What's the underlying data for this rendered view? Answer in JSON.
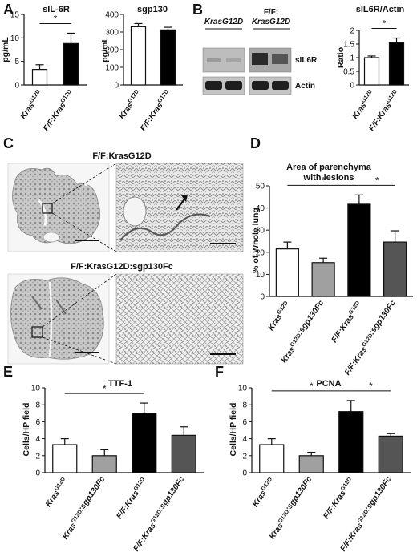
{
  "panels": {
    "A": {
      "label": "A"
    },
    "B": {
      "label": "B"
    },
    "C": {
      "label": "C"
    },
    "D": {
      "label": "D"
    },
    "E": {
      "label": "E"
    },
    "F": {
      "label": "F"
    }
  },
  "blot": {
    "header_left": "KrasG12D",
    "header_right_line1": "F/F:",
    "header_right_line2": "KrasG12D",
    "band_top": "sIL6R",
    "band_bottom": "Actin"
  },
  "histology": {
    "top_title": "F/F:KrasG12D",
    "bottom_title": "F/F:KrasG12D:sgp130Fc"
  },
  "colors": {
    "black": "#000000",
    "white": "#ffffff",
    "light_gray": "#a0a0a0",
    "dark_gray": "#555555"
  },
  "chart_data": [
    {
      "id": "A-left",
      "type": "bar",
      "title": "sIL-6R",
      "ylabel": "pg/mL",
      "ylim": [
        0,
        15
      ],
      "yticks": [
        0,
        5,
        10,
        15
      ],
      "categories": [
        "KrasG12D",
        "F/F:KrasG12D"
      ],
      "values": [
        3.3,
        8.8
      ],
      "errors": [
        1.0,
        2.2
      ],
      "colors": [
        "#ffffff",
        "#000000"
      ],
      "significance": [
        {
          "from": 0,
          "to": 1,
          "label": "*"
        }
      ]
    },
    {
      "id": "A-right",
      "type": "bar",
      "title": "sgp130",
      "ylabel": "pg/mL",
      "ylim": [
        0,
        400
      ],
      "yticks": [
        0,
        100,
        200,
        300,
        400
      ],
      "categories": [
        "KrasG12D",
        "F/F:KrasG12D"
      ],
      "values": [
        330,
        312
      ],
      "errors": [
        18,
        15
      ],
      "colors": [
        "#ffffff",
        "#000000"
      ],
      "significance": []
    },
    {
      "id": "B",
      "type": "bar",
      "title": "sIL6R/Actin",
      "ylabel": "Ratio",
      "ylim": [
        0,
        2.0
      ],
      "yticks": [
        0,
        0.5,
        1,
        1.5,
        2.0
      ],
      "categories": [
        "KrasG12D",
        "F/F:KrasG12D"
      ],
      "values": [
        1.0,
        1.55
      ],
      "errors": [
        0.06,
        0.17
      ],
      "colors": [
        "#ffffff",
        "#000000"
      ],
      "significance": [
        {
          "from": 0,
          "to": 1,
          "label": "*"
        }
      ]
    },
    {
      "id": "D",
      "type": "bar",
      "title": "Area of parenchyma\nwith lesions",
      "ylabel": "% of Whole lung",
      "ylim": [
        0,
        50
      ],
      "yticks": [
        0,
        10,
        20,
        30,
        40,
        50
      ],
      "categories": [
        "KrasG12D",
        "KrasG12D:sgp130Fc",
        "F/F:KrasG12D",
        "F/F:KrasG12D:sgp130Fc"
      ],
      "values": [
        21.5,
        15.3,
        41.7,
        24.6
      ],
      "errors": [
        3.1,
        2.0,
        4.2,
        5.1
      ],
      "colors": [
        "#ffffff",
        "#a0a0a0",
        "#000000",
        "#555555"
      ],
      "significance": [
        {
          "from": 0,
          "to": 2,
          "label": "*"
        },
        {
          "from": 2,
          "to": 3,
          "label": "*"
        }
      ]
    },
    {
      "id": "E",
      "type": "bar",
      "title": "TTF-1",
      "ylabel": "Cells/HP field",
      "ylim": [
        0,
        10
      ],
      "yticks": [
        0,
        2,
        4,
        6,
        8,
        10
      ],
      "categories": [
        "KrasG12D",
        "KrasG12D:sgp130Fc",
        "F/F:KrasG12D",
        "F/F:KrasG12D:sgp130Fc"
      ],
      "values": [
        3.3,
        2.0,
        7.0,
        4.4
      ],
      "errors": [
        0.7,
        0.7,
        1.2,
        1.0
      ],
      "colors": [
        "#ffffff",
        "#a0a0a0",
        "#000000",
        "#555555"
      ],
      "significance": [
        {
          "from": 0,
          "to": 2,
          "label": "*"
        }
      ]
    },
    {
      "id": "F",
      "type": "bar",
      "title": "PCNA",
      "ylabel": "Cells/HP field",
      "ylim": [
        0,
        10
      ],
      "yticks": [
        0,
        2,
        4,
        6,
        8,
        10
      ],
      "categories": [
        "KrasG12D",
        "KrasG12D:sgp130Fc",
        "F/F:KrasG12D",
        "F/F:KrasG12D:sgp130Fc"
      ],
      "values": [
        3.3,
        2.0,
        7.2,
        4.3
      ],
      "errors": [
        0.7,
        0.4,
        1.3,
        0.3
      ],
      "colors": [
        "#ffffff",
        "#a0a0a0",
        "#000000",
        "#555555"
      ],
      "significance": [
        {
          "from": 0,
          "to": 2,
          "label": "*"
        },
        {
          "from": 2,
          "to": 3,
          "label": "*"
        }
      ]
    }
  ]
}
